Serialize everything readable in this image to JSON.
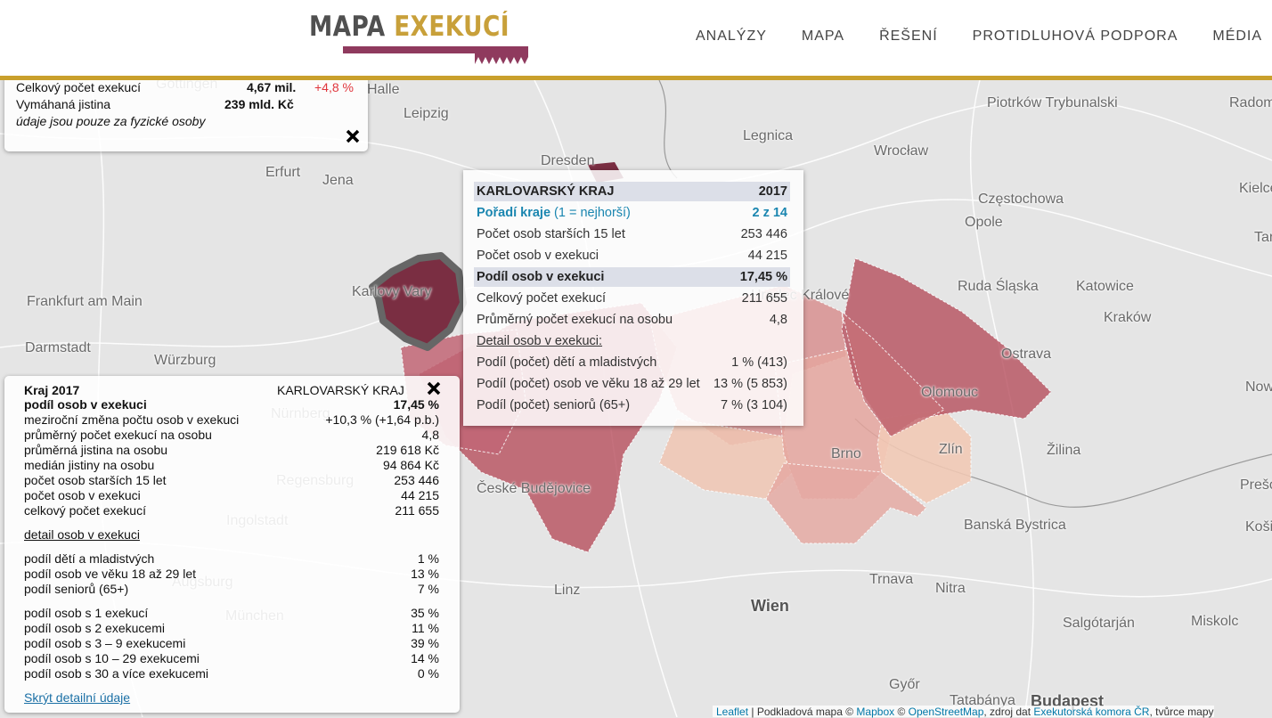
{
  "header": {
    "logo": {
      "first": "MAPA",
      "second": "EXEKUCÍ"
    },
    "nav": [
      "ANALÝZY",
      "MAPA",
      "ŘEŠENÍ",
      "PROTIDLUHOVÁ PODPORA",
      "MÉDIA"
    ]
  },
  "summary": {
    "rows": [
      {
        "label": "Celkový počet exekucí",
        "value": "4,67 mil.",
        "change": "+4,8 %"
      },
      {
        "label": "Vymáhaná jistina",
        "value": "239 mld. Kč"
      }
    ],
    "note": "údaje jsou pouze za fyzické osoby"
  },
  "tooltip": {
    "title": "KARLOVARSKÝ KRAJ",
    "year": "2017",
    "rank": {
      "label": "Pořadí kraje",
      "hint": "(1 = nejhorší)",
      "value": "2 z 14"
    },
    "rows": [
      [
        "Počet osob starších 15 let",
        "253 446"
      ],
      [
        "Počet osob v exekuci",
        "44 215"
      ],
      [
        "Podíl osob v exekuci",
        "17,45 %"
      ],
      [
        "Celkový počet exekucí",
        "211 655"
      ],
      [
        "Průměrný počet exekucí na osobu",
        "4,8"
      ]
    ],
    "detail_heading": "Detail osob v exekuci:",
    "detail_rows": [
      [
        "Podíl (počet) dětí a mladistvých",
        "1 % (413)"
      ],
      [
        "Podíl (počet) osob ve věku 18 až 29 let",
        "13 % (5 853)"
      ],
      [
        "Podíl (počet) seniorů (65+)",
        "7 % (3 104)"
      ]
    ]
  },
  "detail_panel": {
    "heading": "Kraj 2017",
    "region": "KARLOVARSKÝ KRAJ",
    "rows": [
      [
        "podíl osob v exekuci",
        "17,45 %"
      ],
      [
        "meziroční změna počtu osob v exekuci",
        "+10,3 % (+1,64 p.b.)"
      ],
      [
        "průměrný počet exekucí na osobu",
        "4,8"
      ],
      [
        "průměrná jistina na osobu",
        "219 618 Kč"
      ],
      [
        "medián jistiny na osobu",
        "94 864 Kč"
      ],
      [
        "počet osob starších 15 let",
        "253 446"
      ],
      [
        "počet osob v exekuci",
        "44 215"
      ],
      [
        "celkový počet exekucí",
        "211 655"
      ]
    ],
    "link": "detail osob v exekuci",
    "age_rows": [
      [
        "podíl dětí a mladistvých",
        "1 %"
      ],
      [
        "podíl osob ve věku 18 až 29 let",
        "13 %"
      ],
      [
        "podíl seniorů (65+)",
        "7 %"
      ]
    ],
    "count_rows": [
      [
        "podíl osob s 1 exekucí",
        "35 %"
      ],
      [
        "podíl osob s 2 exekucemi",
        "11 %"
      ],
      [
        "podíl osob s 3 – 9 exekucemi",
        "39 %"
      ],
      [
        "podíl osob s 10 – 29 exekucemi",
        "14 %"
      ],
      [
        "podíl osob s 30 a více exekucemi",
        "0 %"
      ]
    ],
    "hide_link": "Skrýt detailní údaje"
  },
  "map": {
    "cities": [
      "Göttingen",
      "Halle",
      "Leipzig",
      "Dresden",
      "Legnica",
      "Wrocław",
      "Piotrków Trybunalski",
      "Radom",
      "Erfurt",
      "Jena",
      "Częstochowa",
      "Opole",
      "Kielce",
      "Frankfurt am Main",
      "Darmstadt",
      "Würzburg",
      "Karlovy Vary",
      "Hradec Králové",
      "Ruda Śląska",
      "Katowice",
      "Kraków",
      "Ostrava",
      "Olomouc",
      "Nürnberg",
      "Regensburg",
      "Brno",
      "Zlín",
      "Žilina",
      "České Budějovice",
      "Ingolstadt",
      "Augsburg",
      "Banská Bystrica",
      "Linz",
      "Trnava",
      "Nitra",
      "München",
      "Wien",
      "Salgótarján",
      "Miskolc",
      "Győr",
      "Tatabánya",
      "Budapest",
      "Prešov",
      "Košice",
      "Nowy Sącz",
      "Tarnów"
    ]
  },
  "attribution": {
    "leaflet": "Leaflet",
    "base": "| Podkladová mapa ©",
    "mapbox": "Mapbox",
    "osm_prefix": "©",
    "osm": "OpenStreetMap",
    "source_prefix": ", zdroj dat",
    "source": "Exekutorská komora ČR",
    "author": ", tvůrce mapy"
  }
}
